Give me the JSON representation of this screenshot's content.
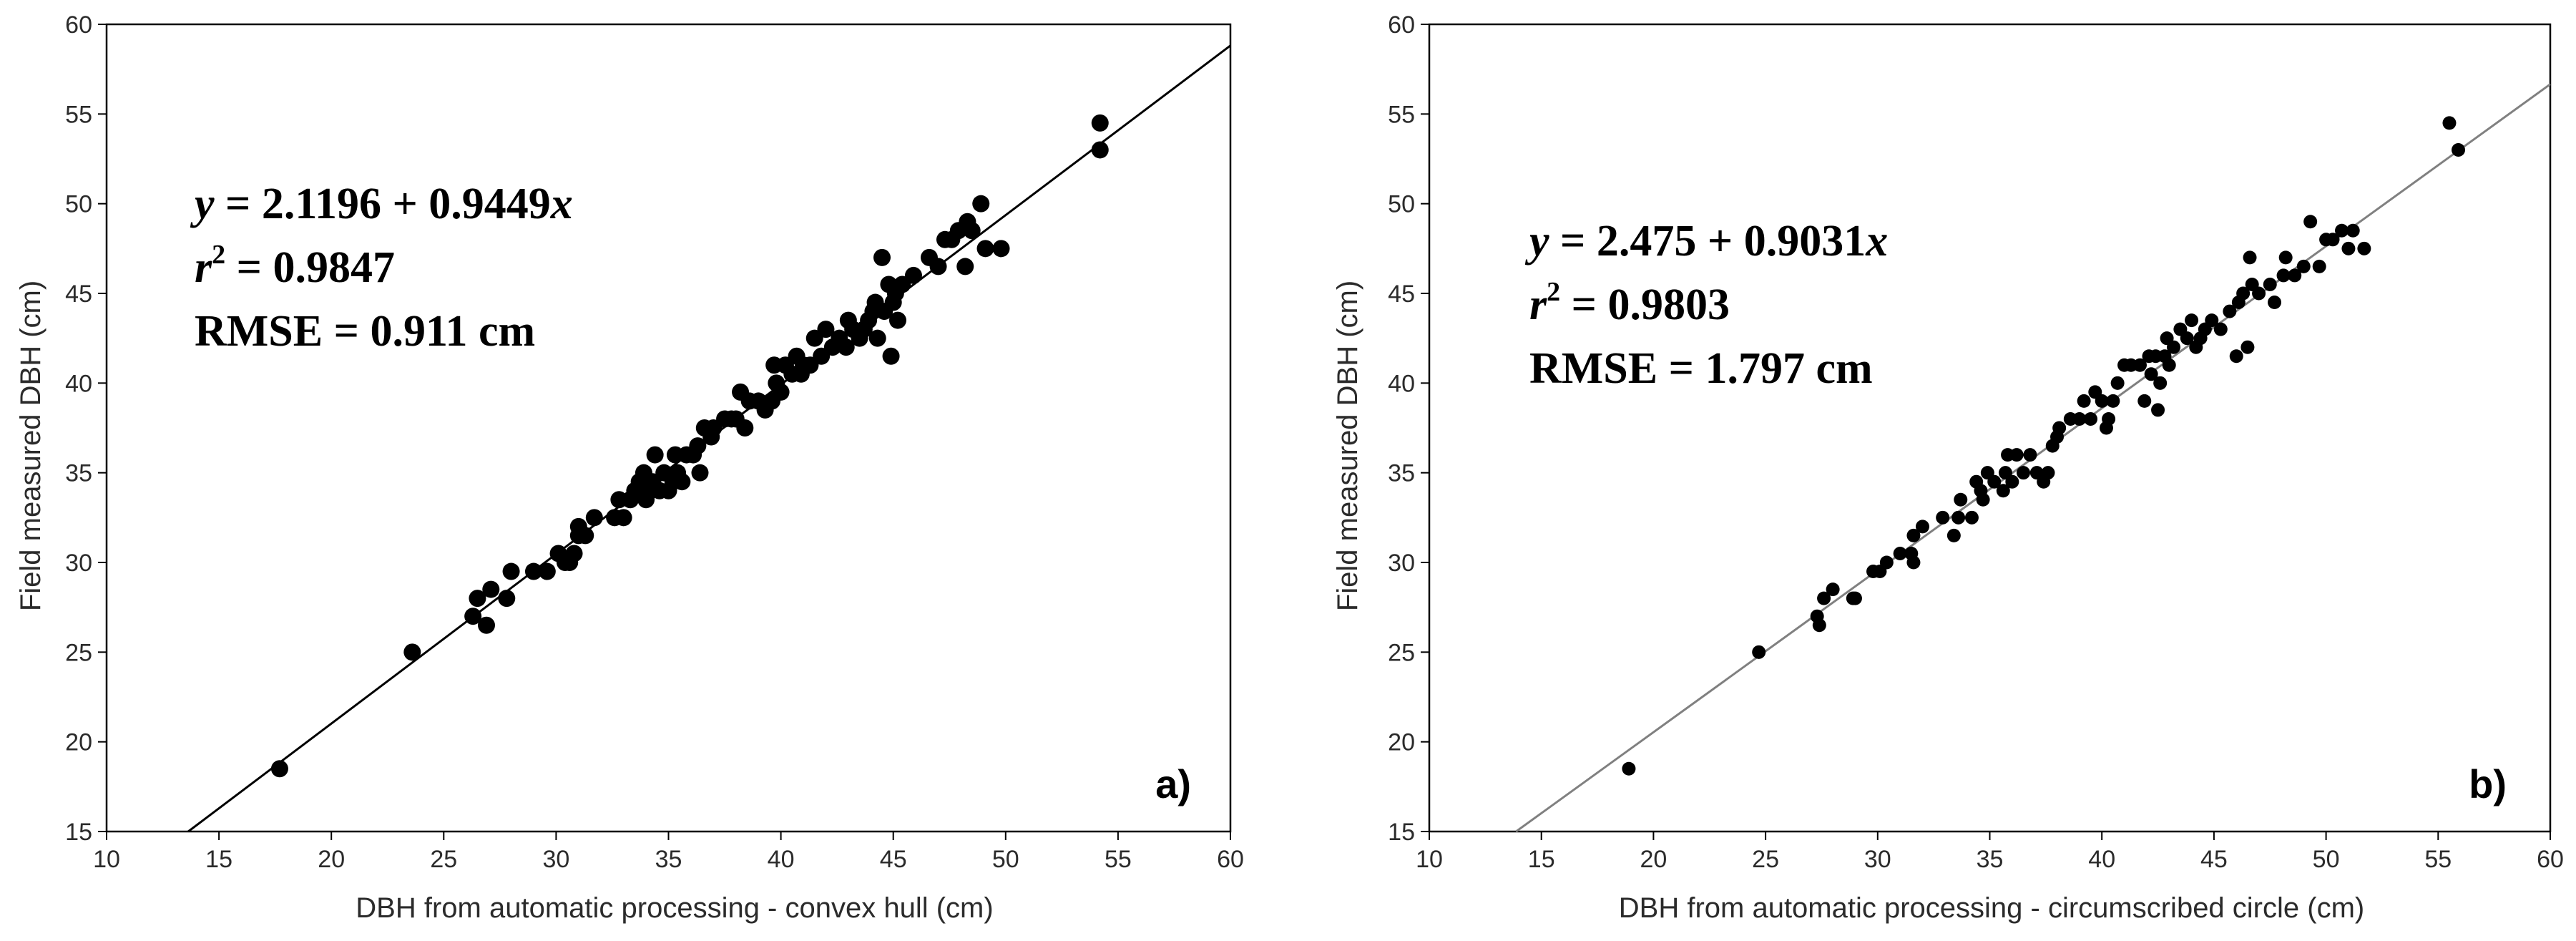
{
  "chart_data": [
    {
      "type": "scatter",
      "panel_label": "a)",
      "xlabel": "DBH from automatic processing - convex hull (cm)",
      "ylabel": "Field measured DBH (cm)",
      "xlim": [
        10,
        60
      ],
      "ylim": [
        15,
        60
      ],
      "xticks": [
        10,
        15,
        20,
        25,
        30,
        35,
        40,
        45,
        50,
        55,
        60
      ],
      "yticks": [
        15,
        20,
        25,
        30,
        35,
        40,
        45,
        50,
        55,
        60
      ],
      "grid": false,
      "regression": {
        "intercept": 2.1196,
        "slope": 0.9449,
        "color": "#000000"
      },
      "annotation": {
        "equation": {
          "y": "y",
          "eq": " = 2.1196 + 0.9449",
          "x": "x"
        },
        "r2": {
          "r": "r",
          "sup": "2",
          "eq": " = 0.9847"
        },
        "rmse": "RMSE = 0.911 cm"
      },
      "points": [
        [
          17.7,
          18.5
        ],
        [
          23.6,
          25.0
        ],
        [
          26.3,
          27.0
        ],
        [
          26.5,
          28.0
        ],
        [
          26.9,
          26.5
        ],
        [
          27.1,
          28.5
        ],
        [
          27.8,
          28.0
        ],
        [
          28.0,
          29.5
        ],
        [
          29.0,
          29.5
        ],
        [
          29.6,
          29.5
        ],
        [
          30.1,
          30.5
        ],
        [
          30.4,
          30.0
        ],
        [
          30.6,
          30.0
        ],
        [
          30.8,
          30.5
        ],
        [
          31.0,
          31.5
        ],
        [
          31.0,
          32.0
        ],
        [
          31.3,
          31.5
        ],
        [
          31.7,
          32.5
        ],
        [
          32.6,
          32.5
        ],
        [
          32.8,
          33.5
        ],
        [
          33.0,
          32.5
        ],
        [
          33.3,
          33.5
        ],
        [
          33.5,
          34.0
        ],
        [
          33.7,
          34.5
        ],
        [
          33.9,
          35.0
        ],
        [
          34.0,
          33.5
        ],
        [
          34.2,
          34.0
        ],
        [
          34.3,
          34.5
        ],
        [
          34.4,
          36.0
        ],
        [
          34.6,
          34.0
        ],
        [
          34.8,
          35.0
        ],
        [
          35.0,
          34.0
        ],
        [
          35.2,
          34.5
        ],
        [
          35.3,
          36.0
        ],
        [
          35.4,
          35.0
        ],
        [
          35.6,
          34.5
        ],
        [
          35.8,
          36.0
        ],
        [
          36.1,
          36.0
        ],
        [
          36.3,
          36.5
        ],
        [
          36.4,
          35.0
        ],
        [
          36.6,
          37.5
        ],
        [
          36.9,
          37.0
        ],
        [
          37.0,
          37.5
        ],
        [
          37.5,
          38.0
        ],
        [
          37.8,
          38.0
        ],
        [
          38.0,
          38.0
        ],
        [
          38.2,
          39.5
        ],
        [
          38.4,
          37.5
        ],
        [
          38.6,
          39.0
        ],
        [
          39.0,
          39.0
        ],
        [
          39.3,
          38.5
        ],
        [
          39.6,
          39.0
        ],
        [
          39.7,
          41.0
        ],
        [
          39.8,
          40.0
        ],
        [
          40.0,
          39.5
        ],
        [
          40.2,
          41.0
        ],
        [
          40.5,
          40.5
        ],
        [
          40.7,
          41.5
        ],
        [
          40.9,
          40.5
        ],
        [
          41.0,
          41.0
        ],
        [
          41.3,
          41.0
        ],
        [
          41.5,
          42.5
        ],
        [
          41.8,
          41.5
        ],
        [
          42.0,
          43.0
        ],
        [
          42.3,
          42.0
        ],
        [
          42.6,
          42.5
        ],
        [
          42.9,
          42.0
        ],
        [
          43.0,
          43.5
        ],
        [
          43.2,
          43.0
        ],
        [
          43.5,
          42.5
        ],
        [
          43.7,
          43.0
        ],
        [
          43.9,
          43.5
        ],
        [
          44.1,
          44.0
        ],
        [
          44.2,
          44.5
        ],
        [
          44.3,
          42.5
        ],
        [
          44.5,
          47.0
        ],
        [
          44.6,
          44.0
        ],
        [
          44.8,
          45.5
        ],
        [
          44.9,
          41.5
        ],
        [
          45.0,
          44.5
        ],
        [
          45.1,
          45.0
        ],
        [
          45.2,
          43.5
        ],
        [
          45.4,
          45.5
        ],
        [
          45.9,
          46.0
        ],
        [
          46.6,
          47.0
        ],
        [
          47.0,
          46.5
        ],
        [
          47.3,
          48.0
        ],
        [
          47.6,
          48.0
        ],
        [
          47.9,
          48.5
        ],
        [
          48.2,
          46.5
        ],
        [
          48.3,
          49.0
        ],
        [
          48.5,
          48.5
        ],
        [
          48.9,
          50.0
        ],
        [
          49.1,
          47.5
        ],
        [
          49.8,
          47.5
        ],
        [
          54.2,
          54.5
        ],
        [
          54.2,
          53.0
        ]
      ]
    },
    {
      "type": "scatter",
      "panel_label": "b)",
      "xlabel": "DBH from automatic processing - circumscribed circle (cm)",
      "ylabel": "Field measured DBH (cm)",
      "xlim": [
        10,
        60
      ],
      "ylim": [
        15,
        60
      ],
      "xticks": [
        10,
        15,
        20,
        25,
        30,
        35,
        40,
        45,
        50,
        55,
        60
      ],
      "yticks": [
        15,
        20,
        25,
        30,
        35,
        40,
        45,
        50,
        55,
        60
      ],
      "grid": false,
      "regression": {
        "intercept": 2.475,
        "slope": 0.9031,
        "color": "#808080"
      },
      "annotation": {
        "equation": {
          "y": "y",
          "eq": " = 2.475 + 0.9031",
          "x": "x"
        },
        "r2": {
          "r": "r",
          "sup": "2",
          "eq": " = 0.9803"
        },
        "rmse": "RMSE = 1.797 cm"
      },
      "points": [
        [
          18.9,
          18.5
        ],
        [
          24.7,
          25.0
        ],
        [
          27.3,
          27.0
        ],
        [
          27.4,
          26.5
        ],
        [
          27.6,
          28.0
        ],
        [
          28.0,
          28.5
        ],
        [
          28.9,
          28.0
        ],
        [
          29.0,
          28.0
        ],
        [
          29.8,
          29.5
        ],
        [
          30.1,
          29.5
        ],
        [
          30.4,
          30.0
        ],
        [
          31.0,
          30.5
        ],
        [
          31.5,
          30.5
        ],
        [
          31.6,
          30.0
        ],
        [
          31.6,
          31.5
        ],
        [
          32.0,
          32.0
        ],
        [
          32.9,
          32.5
        ],
        [
          33.4,
          31.5
        ],
        [
          33.6,
          32.5
        ],
        [
          33.7,
          33.5
        ],
        [
          34.2,
          32.5
        ],
        [
          34.4,
          34.5
        ],
        [
          34.6,
          34.0
        ],
        [
          34.7,
          33.5
        ],
        [
          34.9,
          35.0
        ],
        [
          35.2,
          34.5
        ],
        [
          35.6,
          34.0
        ],
        [
          35.7,
          35.0
        ],
        [
          35.8,
          36.0
        ],
        [
          36.0,
          34.5
        ],
        [
          36.2,
          36.0
        ],
        [
          36.5,
          35.0
        ],
        [
          36.8,
          36.0
        ],
        [
          37.1,
          35.0
        ],
        [
          37.4,
          34.5
        ],
        [
          37.6,
          35.0
        ],
        [
          37.8,
          36.5
        ],
        [
          38.0,
          37.0
        ],
        [
          38.1,
          37.5
        ],
        [
          38.6,
          38.0
        ],
        [
          39.0,
          38.0
        ],
        [
          39.2,
          39.0
        ],
        [
          39.5,
          38.0
        ],
        [
          39.7,
          39.5
        ],
        [
          40.0,
          39.0
        ],
        [
          40.2,
          37.5
        ],
        [
          40.3,
          38.0
        ],
        [
          40.5,
          39.0
        ],
        [
          40.7,
          40.0
        ],
        [
          41.0,
          41.0
        ],
        [
          41.3,
          41.0
        ],
        [
          41.7,
          41.0
        ],
        [
          41.9,
          39.0
        ],
        [
          42.1,
          41.5
        ],
        [
          42.2,
          40.5
        ],
        [
          42.4,
          41.5
        ],
        [
          42.5,
          38.5
        ],
        [
          42.6,
          40.0
        ],
        [
          42.8,
          41.5
        ],
        [
          42.9,
          42.5
        ],
        [
          43.0,
          41.0
        ],
        [
          43.2,
          42.0
        ],
        [
          43.5,
          43.0
        ],
        [
          43.8,
          42.5
        ],
        [
          44.0,
          43.5
        ],
        [
          44.2,
          42.0
        ],
        [
          44.4,
          42.5
        ],
        [
          44.6,
          43.0
        ],
        [
          44.9,
          43.5
        ],
        [
          45.3,
          43.0
        ],
        [
          45.7,
          44.0
        ],
        [
          46.0,
          41.5
        ],
        [
          46.1,
          44.5
        ],
        [
          46.3,
          45.0
        ],
        [
          46.5,
          42.0
        ],
        [
          46.6,
          47.0
        ],
        [
          46.7,
          45.5
        ],
        [
          47.0,
          45.0
        ],
        [
          47.5,
          45.5
        ],
        [
          47.7,
          44.5
        ],
        [
          48.1,
          46.0
        ],
        [
          48.2,
          47.0
        ],
        [
          48.6,
          46.0
        ],
        [
          49.0,
          46.5
        ],
        [
          49.3,
          49.0
        ],
        [
          49.7,
          46.5
        ],
        [
          50.0,
          48.0
        ],
        [
          50.3,
          48.0
        ],
        [
          50.7,
          48.5
        ],
        [
          51.0,
          47.5
        ],
        [
          51.2,
          48.5
        ],
        [
          51.7,
          47.5
        ],
        [
          55.5,
          54.5
        ],
        [
          55.9,
          53.0
        ]
      ]
    }
  ]
}
